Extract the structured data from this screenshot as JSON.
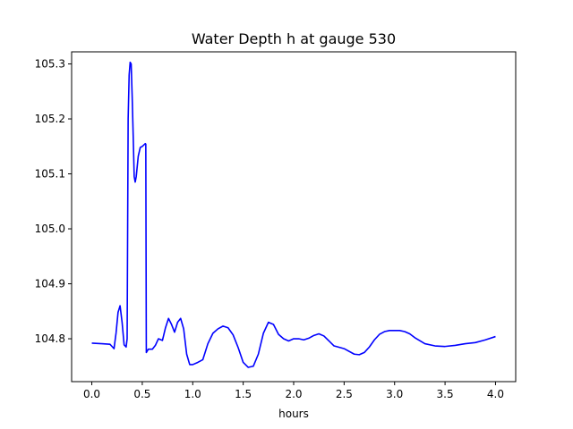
{
  "chart_data": {
    "type": "line",
    "title": "Water Depth h at gauge 530",
    "xlabel": "hours",
    "ylabel": "",
    "xlim": [
      -0.2,
      4.2
    ],
    "ylim": [
      104.722,
      105.322
    ],
    "x_ticks": [
      0.0,
      0.5,
      1.0,
      1.5,
      2.0,
      2.5,
      3.0,
      3.5,
      4.0
    ],
    "x_tick_labels": [
      "0.0",
      "0.5",
      "1.0",
      "1.5",
      "2.0",
      "2.5",
      "3.0",
      "3.5",
      "4.0"
    ],
    "y_ticks": [
      104.8,
      104.9,
      105.0,
      105.1,
      105.2,
      105.3
    ],
    "y_tick_labels": [
      "104.8",
      "104.9",
      "105.0",
      "105.1",
      "105.2",
      "105.3"
    ],
    "grid": false,
    "legend": "none",
    "series": [
      {
        "color": "#0000ff",
        "x": [
          0.0,
          0.1,
          0.18,
          0.2,
          0.22,
          0.24,
          0.26,
          0.28,
          0.3,
          0.32,
          0.34,
          0.35,
          0.36,
          0.37,
          0.38,
          0.39,
          0.4,
          0.41,
          0.42,
          0.43,
          0.44,
          0.46,
          0.48,
          0.5,
          0.53,
          0.535,
          0.54,
          0.56,
          0.6,
          0.63,
          0.66,
          0.7,
          0.73,
          0.76,
          0.79,
          0.82,
          0.85,
          0.88,
          0.91,
          0.94,
          0.97,
          1.0,
          1.05,
          1.1,
          1.15,
          1.2,
          1.25,
          1.3,
          1.35,
          1.4,
          1.45,
          1.5,
          1.55,
          1.6,
          1.65,
          1.7,
          1.75,
          1.8,
          1.85,
          1.9,
          1.95,
          2.0,
          2.05,
          2.1,
          2.15,
          2.2,
          2.25,
          2.3,
          2.35,
          2.4,
          2.5,
          2.6,
          2.65,
          2.7,
          2.75,
          2.8,
          2.85,
          2.9,
          2.95,
          3.0,
          3.05,
          3.1,
          3.15,
          3.2,
          3.3,
          3.4,
          3.5,
          3.6,
          3.7,
          3.8,
          3.9,
          4.0
        ],
        "values": [
          104.792,
          104.791,
          104.79,
          104.786,
          104.782,
          104.81,
          104.848,
          104.86,
          104.83,
          104.789,
          104.785,
          104.8,
          105.2,
          105.28,
          105.303,
          105.3,
          105.24,
          105.17,
          105.095,
          105.085,
          105.095,
          105.132,
          105.148,
          105.15,
          105.155,
          105.154,
          104.775,
          104.781,
          104.781,
          104.788,
          104.8,
          104.797,
          104.82,
          104.837,
          104.826,
          104.812,
          104.83,
          104.837,
          104.818,
          104.772,
          104.753,
          104.753,
          104.757,
          104.762,
          104.791,
          104.81,
          104.818,
          104.823,
          104.82,
          104.807,
          104.784,
          104.757,
          104.748,
          104.75,
          104.772,
          104.81,
          104.83,
          104.826,
          104.808,
          104.8,
          104.796,
          104.8,
          104.8,
          104.798,
          104.801,
          104.806,
          104.809,
          104.805,
          104.796,
          104.787,
          104.782,
          104.772,
          104.771,
          104.775,
          104.785,
          104.798,
          104.808,
          104.813,
          104.815,
          104.815,
          104.815,
          104.813,
          104.809,
          104.802,
          104.791,
          104.787,
          104.786,
          104.788,
          104.791,
          104.793,
          104.798,
          104.804
        ]
      }
    ]
  }
}
